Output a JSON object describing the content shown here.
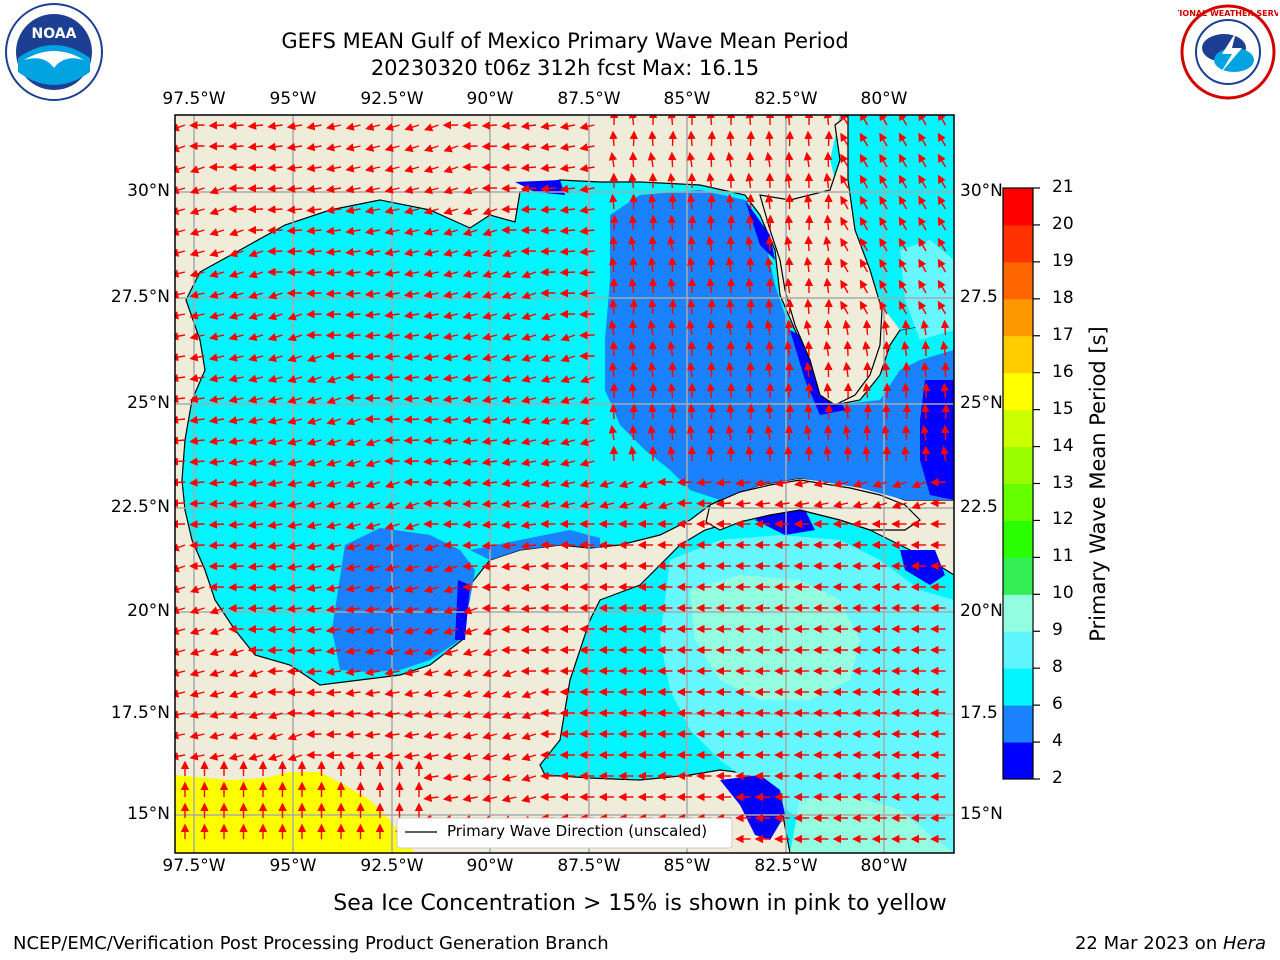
{
  "title": {
    "line1": "GEFS MEAN Gulf of Mexico Primary Wave Mean Period",
    "line2": "20230320 t06z 312h fcst   Max: 16.15"
  },
  "axes": {
    "lon_labels": [
      "97.5°W",
      "95°W",
      "92.5°W",
      "90°W",
      "87.5°W",
      "85°W",
      "82.5°W",
      "80°W"
    ],
    "lat_labels_left": [
      "30°N",
      "27.5°N",
      "25°N",
      "22.5°N",
      "20°N",
      "17.5°N",
      "15°N"
    ],
    "lat_labels_right": [
      "30°N",
      "27.5",
      "25°N",
      "22.5",
      "20°N",
      "17.5",
      "15°N"
    ]
  },
  "legend": {
    "label": "Primary Wave Direction (unscaled)"
  },
  "colorbar": {
    "label": "Primary Wave Mean Period [s]",
    "ticks": [
      "2",
      "4",
      "6",
      "8",
      "9",
      "10",
      "11",
      "12",
      "13",
      "14",
      "15",
      "16",
      "17",
      "18",
      "19",
      "20",
      "21"
    ],
    "colors": [
      "#0000ff",
      "#1a82ff",
      "#00f5ff",
      "#5ff5ff",
      "#94ffe0",
      "#33ef55",
      "#2aff00",
      "#66ff00",
      "#99ff00",
      "#ccff00",
      "#ffff00",
      "#ffcc00",
      "#ff9900",
      "#ff6600",
      "#ff3300",
      "#ff0000"
    ]
  },
  "footer": {
    "ice_note": "Sea Ice Concentration > 15% is shown in pink to yellow",
    "branch": "NCEP/EMC/Verification Post Processing Product Generation Branch",
    "date": "22 Mar 2023 on ",
    "host": "Hera"
  },
  "logos": {
    "noaa_text": "NOAA",
    "nws_text": "NATIONAL WEATHER SERVICE"
  },
  "palette": {
    "land": "#efedda",
    "cyan": "#00f5ff",
    "light_cyan": "#66f7ff",
    "mid_blue": "#1a82ff",
    "deep_blue": "#0000ff",
    "yellow": "#ffff00",
    "arrow": "#ff0000"
  }
}
